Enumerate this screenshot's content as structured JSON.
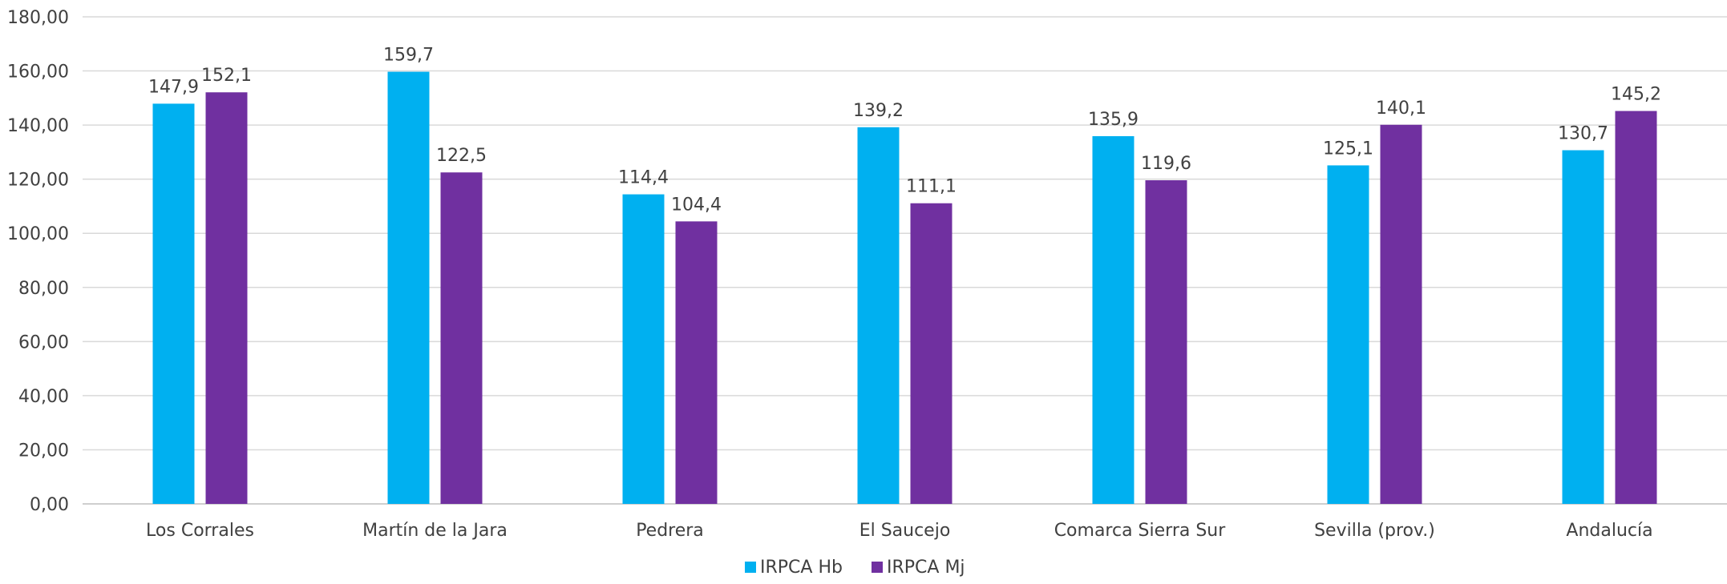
{
  "chart_data": {
    "type": "bar",
    "categories": [
      "Los Corrales",
      "Martín de la Jara",
      "Pedrera",
      "El Saucejo",
      "Comarca Sierra Sur",
      "Sevilla (prov.)",
      "Andalucía"
    ],
    "series": [
      {
        "name": "IRPCA Hb",
        "color": "#00B0F0",
        "values": [
          147.9,
          159.7,
          114.4,
          139.2,
          135.9,
          125.1,
          130.7
        ],
        "labels": [
          "147,9",
          "159,7",
          "114,4",
          "139,2",
          "135,9",
          "125,1",
          "130,7"
        ]
      },
      {
        "name": "IRPCA Mj",
        "color": "#7030A0",
        "values": [
          152.1,
          122.5,
          104.4,
          111.1,
          119.6,
          140.1,
          145.2
        ],
        "labels": [
          "152,1",
          "122,5",
          "104,4",
          "111,1",
          "119,6",
          "140,1",
          "145,2"
        ]
      }
    ],
    "ylim": [
      0,
      180
    ],
    "yticks": [
      "0,00",
      "20,00",
      "40,00",
      "60,00",
      "80,00",
      "100,00",
      "120,00",
      "140,00",
      "160,00",
      "180,00"
    ],
    "grid": true,
    "legend_position": "bottom",
    "title": "",
    "xlabel": "",
    "ylabel": ""
  }
}
